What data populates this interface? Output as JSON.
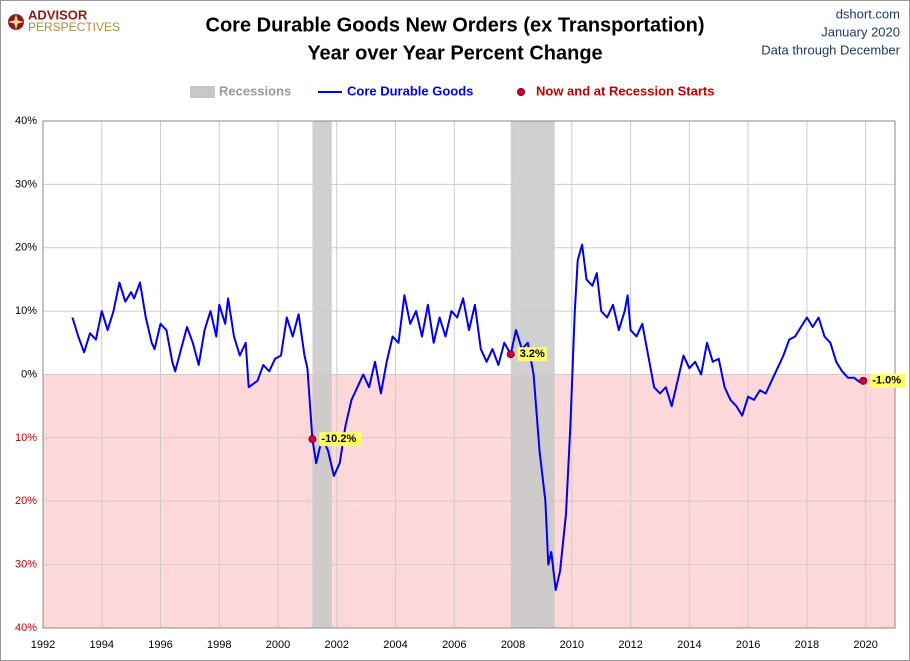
{
  "chart_data": {
    "type": "line",
    "title": "Core Durable Goods New Orders (ex Transportation)",
    "subtitle": "Year over Year Percent Change",
    "logo": {
      "line1": "ADVISOR",
      "line2": "PERSPECTIVES"
    },
    "source": [
      "dshort.com",
      "January 2020",
      "Data through December"
    ],
    "recessions_name": "Recessions",
    "recessions": [
      [
        2001.17,
        2001.83
      ],
      [
        2007.92,
        2009.42
      ]
    ],
    "recession_color": "#c8c8c8",
    "negative_fill": "#ffd9d9",
    "xlim": [
      1992,
      2021
    ],
    "xticks": [
      1992,
      1994,
      1996,
      1998,
      2000,
      2002,
      2004,
      2006,
      2008,
      2010,
      2012,
      2014,
      2016,
      2018,
      2020
    ],
    "ylim": [
      -40,
      40
    ],
    "yticks": [
      {
        "value": -40,
        "label": "40%"
      },
      {
        "value": -30,
        "label": "30%"
      },
      {
        "value": -20,
        "label": "20%"
      },
      {
        "value": -10,
        "label": "10%"
      },
      {
        "value": 0,
        "label": "0%"
      },
      {
        "value": 10,
        "label": "10%"
      },
      {
        "value": 20,
        "label": "20%"
      },
      {
        "value": 30,
        "label": "30%"
      },
      {
        "value": 40,
        "label": "40%"
      }
    ],
    "grid": true,
    "series": [
      {
        "name": "Core Durable Goods",
        "color": "#0000ee",
        "x": [
          1993.0,
          1993.2,
          1993.4,
          1993.6,
          1993.8,
          1994.0,
          1994.2,
          1994.4,
          1994.6,
          1994.8,
          1995.0,
          1995.1,
          1995.3,
          1995.5,
          1995.7,
          1995.8,
          1996.0,
          1996.2,
          1996.4,
          1996.5,
          1996.7,
          1996.9,
          1997.1,
          1997.3,
          1997.5,
          1997.7,
          1997.9,
          1998.0,
          1998.2,
          1998.3,
          1998.5,
          1998.7,
          1998.9,
          1999.0,
          1999.3,
          1999.5,
          1999.7,
          1999.9,
          2000.1,
          2000.3,
          2000.5,
          2000.7,
          2000.9,
          2001.0,
          2001.17,
          2001.3,
          2001.5,
          2001.7,
          2001.9,
          2002.1,
          2002.3,
          2002.5,
          2002.7,
          2002.9,
          2003.1,
          2003.3,
          2003.5,
          2003.7,
          2003.9,
          2004.1,
          2004.3,
          2004.5,
          2004.7,
          2004.9,
          2005.1,
          2005.3,
          2005.5,
          2005.7,
          2005.9,
          2006.1,
          2006.3,
          2006.5,
          2006.7,
          2006.9,
          2007.1,
          2007.3,
          2007.5,
          2007.7,
          2007.92,
          2008.1,
          2008.3,
          2008.5,
          2008.7,
          2008.9,
          2009.1,
          2009.2,
          2009.3,
          2009.45,
          2009.6,
          2009.8,
          2009.95,
          2010.1,
          2010.2,
          2010.35,
          2010.5,
          2010.7,
          2010.85,
          2011.0,
          2011.2,
          2011.4,
          2011.6,
          2011.8,
          2011.9,
          2012.0,
          2012.2,
          2012.4,
          2012.6,
          2012.8,
          2013.0,
          2013.2,
          2013.4,
          2013.6,
          2013.8,
          2014.0,
          2014.2,
          2014.4,
          2014.6,
          2014.8,
          2015.0,
          2015.2,
          2015.4,
          2015.6,
          2015.8,
          2016.0,
          2016.2,
          2016.4,
          2016.6,
          2016.8,
          2017.0,
          2017.2,
          2017.4,
          2017.6,
          2017.8,
          2018.0,
          2018.2,
          2018.4,
          2018.6,
          2018.8,
          2019.0,
          2019.2,
          2019.4,
          2019.6,
          2019.8,
          2019.92
        ],
        "values": [
          9,
          6,
          3.5,
          6.5,
          5.5,
          10,
          7,
          10,
          14.5,
          11.5,
          13,
          12,
          14.5,
          9,
          5,
          4,
          8,
          7,
          2,
          0.5,
          4,
          7.5,
          5,
          1.5,
          7,
          10,
          6,
          11,
          8,
          12,
          6,
          3,
          5,
          -2,
          -1,
          1.5,
          0.5,
          2.5,
          3,
          9,
          6,
          9.5,
          3,
          1,
          -10.2,
          -14,
          -10,
          -12,
          -16,
          -14,
          -8,
          -4,
          -2,
          0,
          -2,
          2,
          -3,
          2,
          6,
          5,
          12.5,
          8,
          10,
          6,
          11,
          5,
          9,
          6,
          10,
          9,
          12,
          7,
          11,
          4,
          2,
          4,
          1.5,
          5,
          3.2,
          7,
          4,
          5,
          0,
          -12,
          -20,
          -30,
          -28,
          -34,
          -31,
          -22,
          -8,
          10,
          18,
          20.5,
          15,
          14,
          16,
          10,
          9,
          11,
          7,
          10,
          12.5,
          7,
          6,
          8,
          3,
          -2,
          -3,
          -2,
          -5,
          -1,
          3,
          1,
          2,
          0,
          5,
          2,
          2.5,
          -2,
          -4,
          -5,
          -6.5,
          -3.5,
          -4,
          -2.5,
          -3,
          -1,
          1,
          3,
          5.5,
          6,
          7.5,
          9,
          7.5,
          9,
          6,
          5,
          2,
          0.5,
          -0.5,
          -0.5,
          -1.2,
          -1.0
        ]
      },
      {
        "name": "Now and at Recession Starts",
        "color": "#cc0044",
        "x": [
          2001.17,
          2007.92,
          2019.92
        ],
        "values": [
          -10.2,
          3.2,
          -1.0
        ],
        "value_labels": [
          "-10.2%",
          "3.2%",
          "-1.0%"
        ]
      }
    ]
  }
}
